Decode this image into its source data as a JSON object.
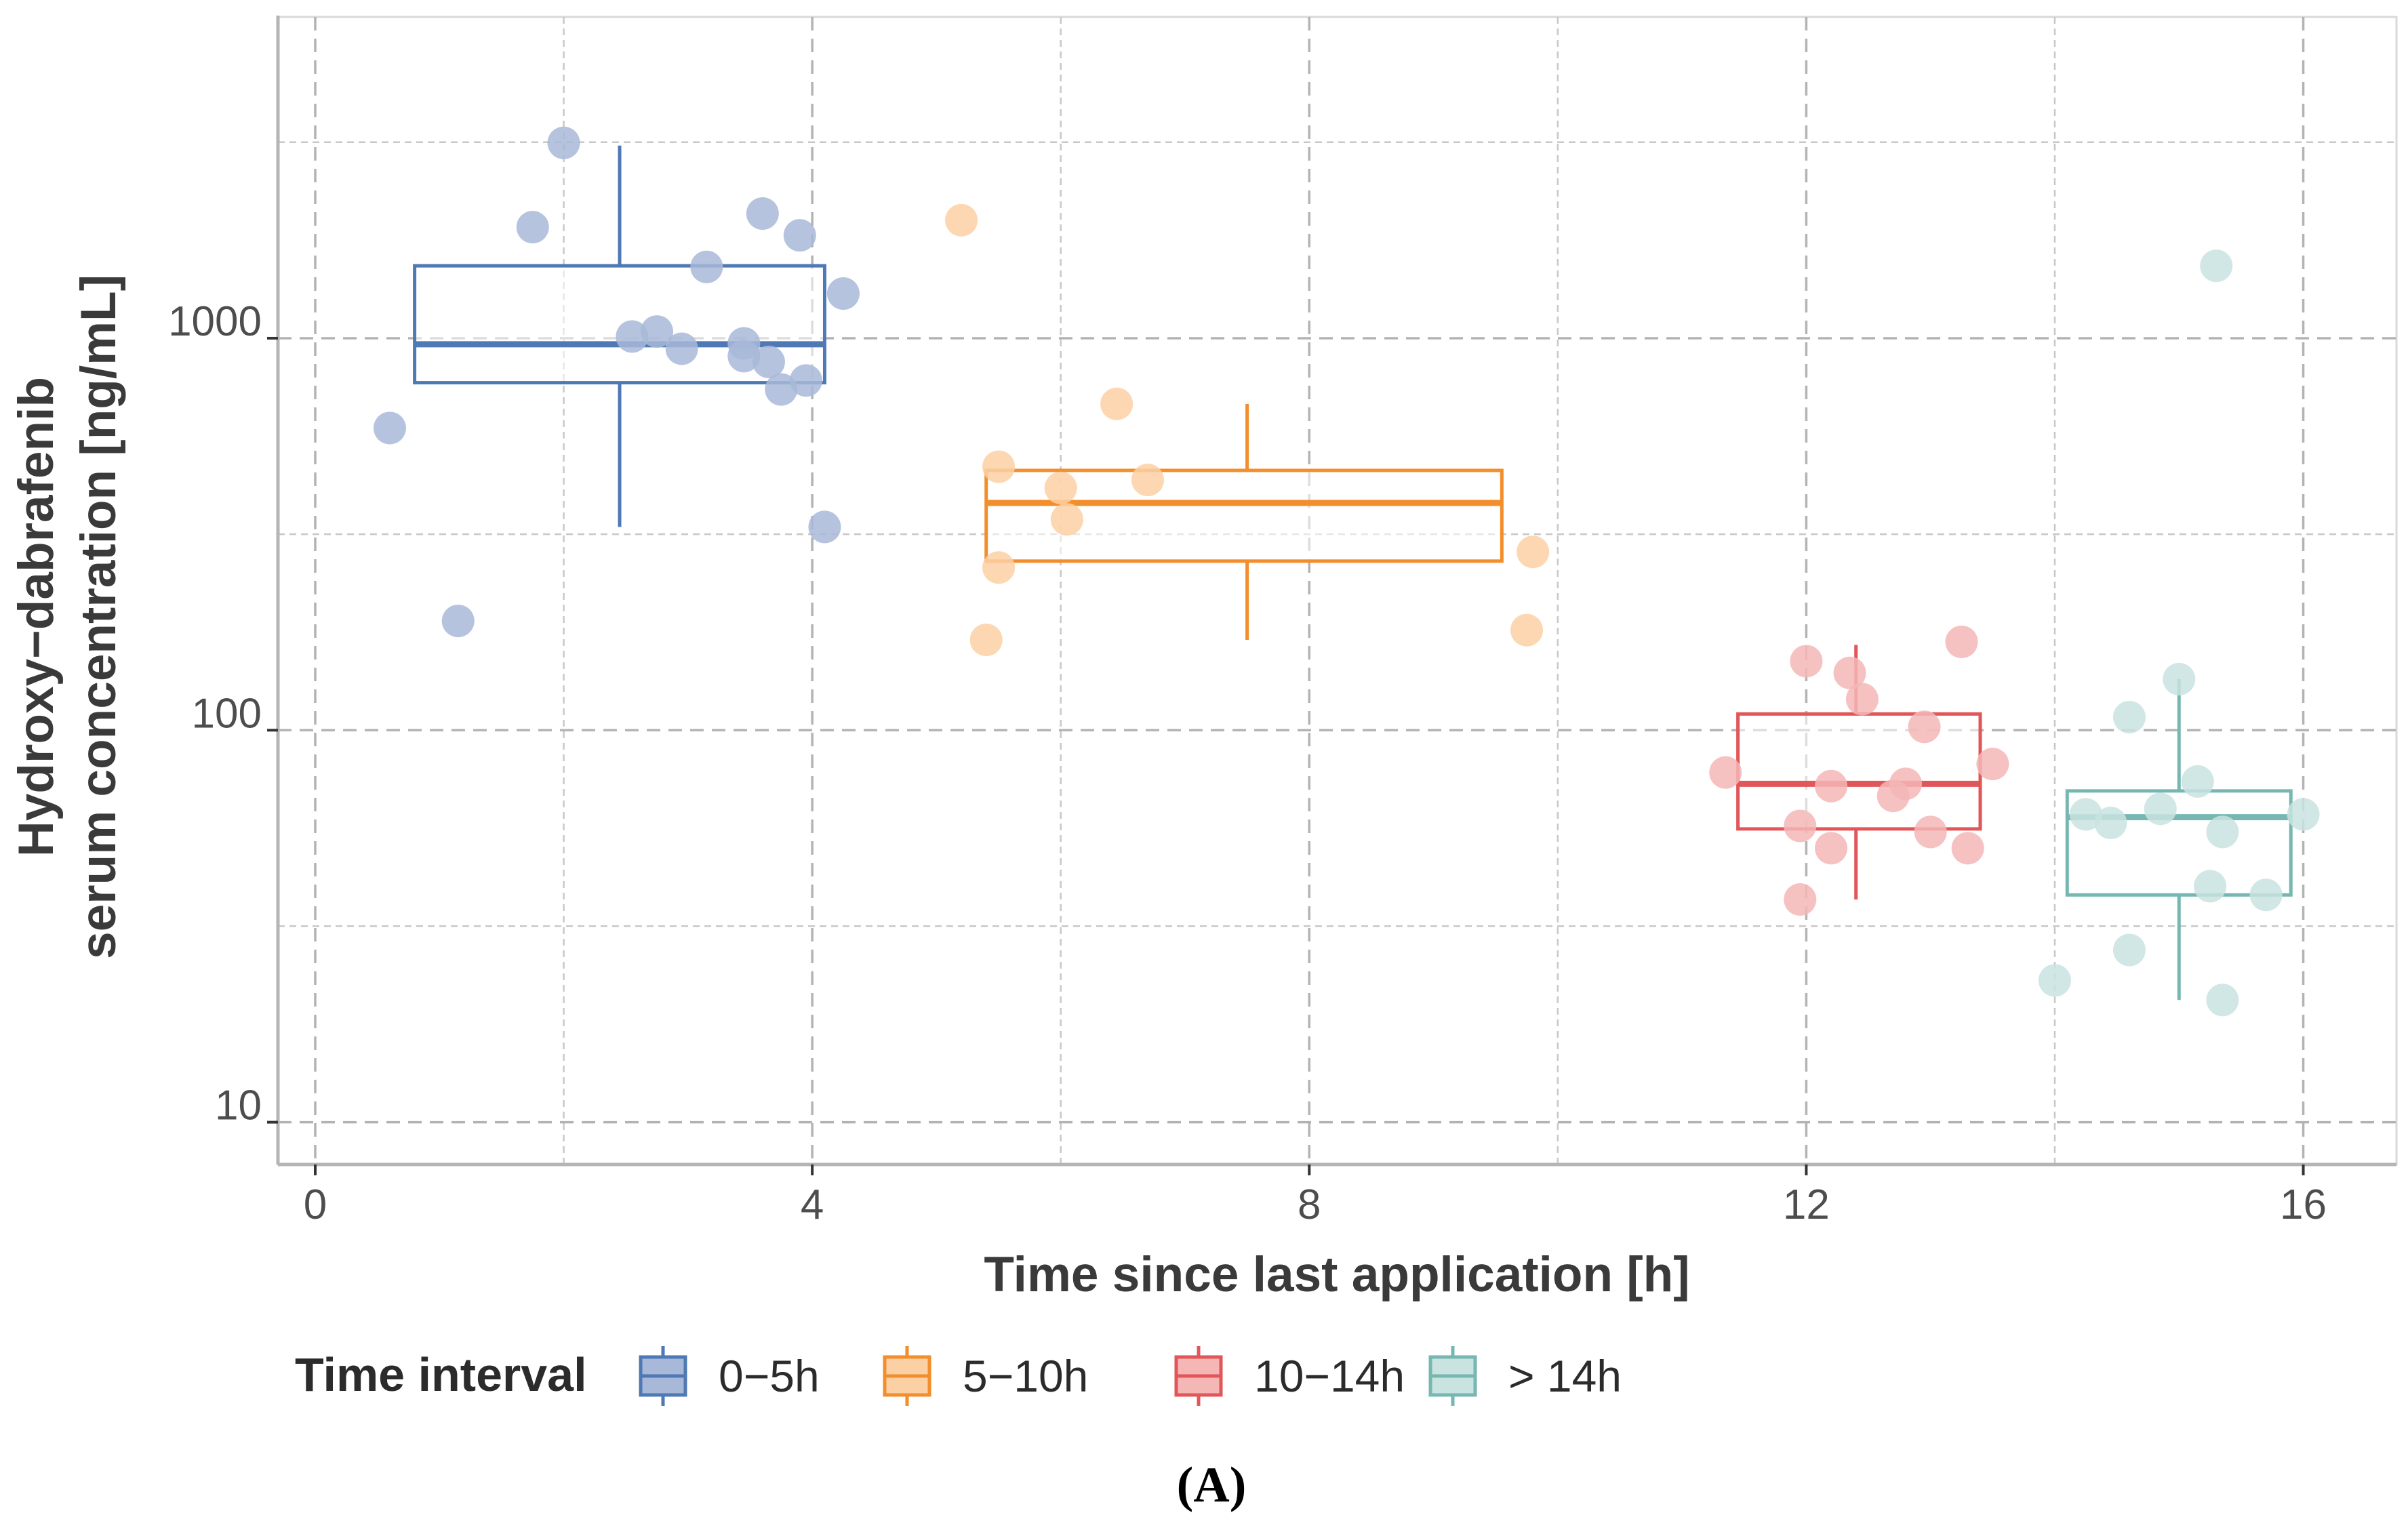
{
  "chart_data": {
    "type": "box",
    "panel_label": "(A)",
    "xlabel": "Time since last application [h]",
    "ylabel_line1": "Hydroxy−dabrafenib",
    "ylabel_line2": "serum concentration [ng/mL]",
    "xlim": [
      -0.3,
      16.75
    ],
    "xticks": [
      0,
      4,
      8,
      12,
      16
    ],
    "xtick_labels": [
      "0",
      "4",
      "8",
      "12",
      "16"
    ],
    "y_scale": "log10",
    "ylim": [
      7.8,
      6600
    ],
    "yticks": [
      10,
      100,
      1000
    ],
    "ytick_labels": [
      "10",
      "100",
      "1000"
    ],
    "legend": {
      "title": "Time interval",
      "position": "bottom"
    },
    "series": [
      {
        "name": "0−5h",
        "color": "#4e79b4",
        "point_color": "#a8b8d8",
        "box": {
          "x_min": 0.8,
          "x_max": 4.1,
          "whisker_x": 2.45,
          "q1": 770,
          "median": 965,
          "q3": 1530,
          "whisker_low": 330,
          "whisker_high": 3100
        },
        "points": [
          {
            "x": 0.6,
            "y": 590
          },
          {
            "x": 1.15,
            "y": 190
          },
          {
            "x": 1.75,
            "y": 1920
          },
          {
            "x": 2.0,
            "y": 3150
          },
          {
            "x": 2.55,
            "y": 1010
          },
          {
            "x": 2.75,
            "y": 1040
          },
          {
            "x": 2.95,
            "y": 940
          },
          {
            "x": 3.15,
            "y": 1520
          },
          {
            "x": 3.45,
            "y": 970
          },
          {
            "x": 3.45,
            "y": 900
          },
          {
            "x": 3.6,
            "y": 2080
          },
          {
            "x": 3.65,
            "y": 870
          },
          {
            "x": 3.75,
            "y": 740
          },
          {
            "x": 3.9,
            "y": 1830
          },
          {
            "x": 3.95,
            "y": 780
          },
          {
            "x": 4.1,
            "y": 330
          },
          {
            "x": 4.25,
            "y": 1300
          }
        ]
      },
      {
        "name": "5−10h",
        "color": "#f28e2b",
        "point_color": "#fbd0a5",
        "box": {
          "x_min": 5.4,
          "x_max": 9.55,
          "whisker_x": 7.5,
          "q1": 270,
          "median": 380,
          "q3": 460,
          "whisker_low": 170,
          "whisker_high": 680
        },
        "points": [
          {
            "x": 5.2,
            "y": 2000
          },
          {
            "x": 5.4,
            "y": 170
          },
          {
            "x": 5.5,
            "y": 470
          },
          {
            "x": 5.5,
            "y": 260
          },
          {
            "x": 6.0,
            "y": 415
          },
          {
            "x": 6.05,
            "y": 345
          },
          {
            "x": 6.45,
            "y": 680
          },
          {
            "x": 6.7,
            "y": 435
          },
          {
            "x": 9.75,
            "y": 180
          },
          {
            "x": 9.8,
            "y": 285
          }
        ]
      },
      {
        "name": "10−14h",
        "color": "#e15759",
        "point_color": "#f5b6b6",
        "box": {
          "x_min": 11.45,
          "x_max": 13.4,
          "whisker_x": 12.4,
          "q1": 56,
          "median": 73,
          "q3": 110,
          "whisker_low": 37,
          "whisker_high": 165
        },
        "points": [
          {
            "x": 11.35,
            "y": 78
          },
          {
            "x": 11.95,
            "y": 57
          },
          {
            "x": 11.95,
            "y": 37
          },
          {
            "x": 12.0,
            "y": 150
          },
          {
            "x": 12.2,
            "y": 72
          },
          {
            "x": 12.2,
            "y": 50
          },
          {
            "x": 12.35,
            "y": 140
          },
          {
            "x": 12.45,
            "y": 120
          },
          {
            "x": 12.7,
            "y": 68
          },
          {
            "x": 12.8,
            "y": 73
          },
          {
            "x": 12.95,
            "y": 102
          },
          {
            "x": 13.0,
            "y": 55
          },
          {
            "x": 13.25,
            "y": 168
          },
          {
            "x": 13.3,
            "y": 50
          },
          {
            "x": 13.5,
            "y": 82
          }
        ]
      },
      {
        "name": "> 14h",
        "color": "#76b7b2",
        "point_color": "#c9e3e0",
        "box": {
          "x_min": 14.1,
          "x_max": 15.9,
          "whisker_x": 15.0,
          "q1": 38,
          "median": 60,
          "q3": 70,
          "whisker_low": 20.5,
          "whisker_high": 135
        },
        "points": [
          {
            "x": 14.0,
            "y": 23
          },
          {
            "x": 14.25,
            "y": 61
          },
          {
            "x": 14.45,
            "y": 58
          },
          {
            "x": 14.6,
            "y": 27.5
          },
          {
            "x": 14.6,
            "y": 108
          },
          {
            "x": 14.85,
            "y": 63
          },
          {
            "x": 15.0,
            "y": 135
          },
          {
            "x": 15.15,
            "y": 74
          },
          {
            "x": 15.25,
            "y": 40
          },
          {
            "x": 15.3,
            "y": 1530
          },
          {
            "x": 15.35,
            "y": 55
          },
          {
            "x": 15.35,
            "y": 20.5
          },
          {
            "x": 15.7,
            "y": 38
          },
          {
            "x": 16.0,
            "y": 61
          }
        ]
      }
    ]
  }
}
